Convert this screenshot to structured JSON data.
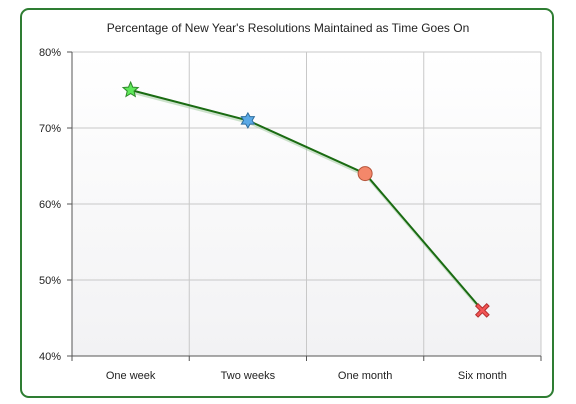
{
  "chart_data": {
    "type": "line",
    "title": "Percentage of New Year's Resolutions Maintained as Time Goes On",
    "xlabel": "",
    "ylabel": "",
    "categories": [
      "One week",
      "Two weeks",
      "One month",
      "Six month"
    ],
    "values": [
      75,
      71,
      64,
      46
    ],
    "ylim": [
      40,
      80
    ],
    "yticks": [
      "40%",
      "50%",
      "60%",
      "70%",
      "80%"
    ],
    "grid": true,
    "legend": "none",
    "line_color": "#1a6b12",
    "markers": [
      {
        "shape": "star",
        "color": "#5fe85a"
      },
      {
        "shape": "star-of-david",
        "color": "#5aa9e6"
      },
      {
        "shape": "circle",
        "color": "#f4876a"
      },
      {
        "shape": "x",
        "color": "#f25454"
      }
    ]
  }
}
